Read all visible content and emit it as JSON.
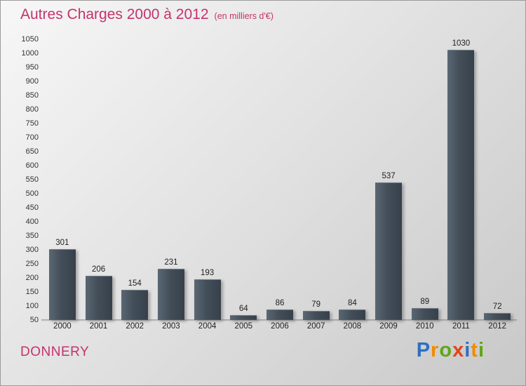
{
  "header": {
    "title": "Autres Charges 2000 à 2012",
    "subtitle": "(en milliers d'€)"
  },
  "footer": {
    "company": "DONNERY",
    "brand_name": "Proxiti",
    "brand_letters": [
      {
        "ch": "P",
        "color": "#2d6fc3"
      },
      {
        "ch": "r",
        "color": "#f08c00"
      },
      {
        "ch": "o",
        "color": "#5fa716"
      },
      {
        "ch": "x",
        "color": "#e2441b"
      },
      {
        "ch": "i",
        "color": "#2d6fc3"
      },
      {
        "ch": "t",
        "color": "#f08c00"
      },
      {
        "ch": "i",
        "color": "#5fa716"
      }
    ]
  },
  "colors": {
    "accent_pink": "#c4336b",
    "bar_dark": "#37414b",
    "bar_light": "#5a6773",
    "text": "#1e1e1e"
  },
  "chart_data": {
    "type": "bar",
    "title": "Autres Charges 2000 à 2012",
    "subtitle": "(en milliers d'€)",
    "categories": [
      "2000",
      "2001",
      "2002",
      "2003",
      "2004",
      "2005",
      "2006",
      "2007",
      "2008",
      "2009",
      "2010",
      "2011",
      "2012"
    ],
    "values": [
      301,
      206,
      154,
      231,
      193,
      64,
      86,
      79,
      84,
      537,
      89,
      1030,
      72
    ],
    "xlabel": "",
    "ylabel": "",
    "ylim": [
      50,
      1050
    ],
    "ytick_step": 50,
    "grid": false,
    "legend": null,
    "bar_value_labels": true
  }
}
